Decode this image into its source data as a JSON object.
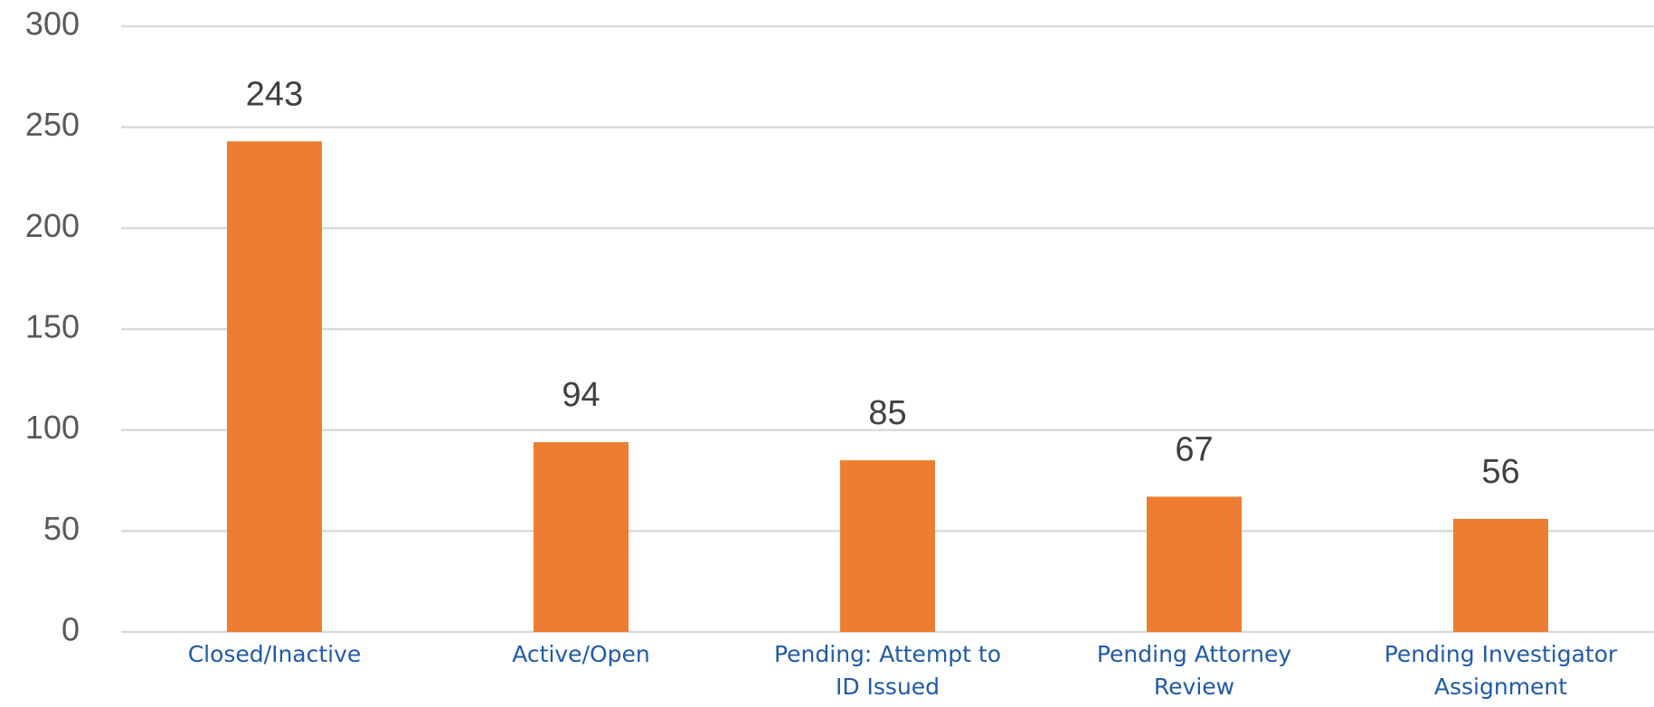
{
  "chart_data": {
    "type": "bar",
    "categories": [
      "Closed/Inactive",
      "Active/Open",
      "Pending: Attempt to ID Issued",
      "Pending Attorney Review",
      "Pending Investigator Assignment"
    ],
    "values": [
      243,
      94,
      85,
      67,
      56
    ],
    "color": "#ed7d31",
    "ylim": [
      0,
      300
    ],
    "yticks": [
      0,
      50,
      100,
      150,
      200,
      250,
      300
    ],
    "grid": true
  }
}
